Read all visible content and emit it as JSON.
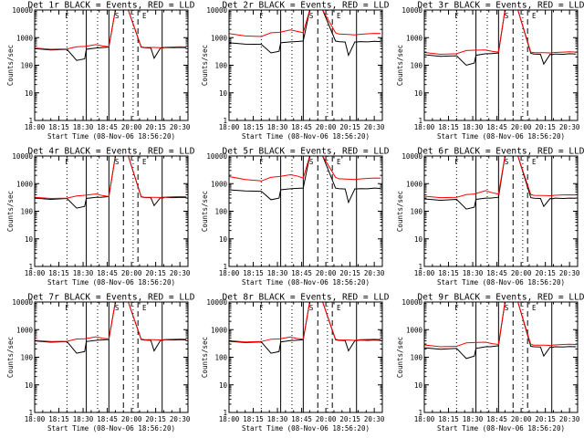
{
  "figure": {
    "xaxis_label": "Start Time (08-Nov-06 18:56:20)",
    "ylabel": "Counts/sec"
  },
  "chart_data": {
    "type": "line",
    "panel_count": 9,
    "shared_x": {
      "unit": "time of day",
      "range": [
        "18:00",
        "20:35"
      ],
      "ticks": [
        "18:00",
        "18:15",
        "18:30",
        "18:45",
        "20:00",
        "20:15",
        "20:30"
      ],
      "tick_minutes": [
        0,
        15,
        30,
        45,
        60,
        75,
        90
      ]
    },
    "shared_y": {
      "scale": "log",
      "range": [
        1,
        10000
      ],
      "ticks": [
        "1",
        "10",
        "100",
        "1000",
        "10000"
      ],
      "tick_values": [
        1,
        10,
        100,
        1000,
        10000
      ]
    },
    "markers": {
      "dotted_minutes": [
        20,
        39,
        61
      ],
      "solid_minutes": [
        32,
        46,
        79
      ],
      "dashed_minutes": [
        55,
        64
      ],
      "letters": [
        "F",
        "S",
        "E"
      ]
    },
    "series_meta": [
      {
        "name": "Events",
        "color": "#000000"
      },
      {
        "name": "LLD",
        "color": "#ff0000"
      }
    ],
    "panels": [
      {
        "title": "Det 1r  BLACK = Events, RED = LLD",
        "events": {
          "x": [
            0,
            10,
            20,
            26,
            31,
            32,
            38,
            41,
            46,
            50,
            58,
            66,
            68,
            72,
            74,
            78,
            79,
            81,
            86,
            90,
            94
          ],
          "y": [
            400,
            360,
            380,
            150,
            170,
            380,
            420,
            430,
            450,
            10000,
            10000,
            450,
            430,
            420,
            180,
            420,
            420,
            440,
            430,
            440,
            430
          ]
        },
        "lld": {
          "x": [
            0,
            10,
            20,
            26,
            31,
            38,
            42,
            46,
            50,
            58,
            66,
            68,
            74,
            78,
            81,
            86,
            90,
            94
          ],
          "y": [
            420,
            380,
            390,
            470,
            480,
            560,
            500,
            470,
            10000,
            10000,
            470,
            440,
            440,
            430,
            450,
            460,
            470,
            460
          ]
        }
      },
      {
        "title": "Det 2r  BLACK = Events, RED = LLD",
        "events": {
          "x": [
            0,
            10,
            20,
            26,
            31,
            32,
            38,
            41,
            46,
            50,
            58,
            66,
            68,
            72,
            74,
            78,
            79,
            81,
            86,
            90,
            94
          ],
          "y": [
            650,
            580,
            570,
            280,
            320,
            650,
            700,
            720,
            750,
            10000,
            10000,
            750,
            720,
            690,
            230,
            700,
            690,
            720,
            700,
            740,
            720
          ]
        },
        "lld": {
          "x": [
            0,
            10,
            20,
            26,
            31,
            38,
            42,
            46,
            50,
            58,
            66,
            68,
            74,
            78,
            81,
            86,
            90,
            94
          ],
          "y": [
            1400,
            1150,
            1100,
            1500,
            1550,
            1900,
            1700,
            1500,
            10000,
            10000,
            1500,
            1350,
            1300,
            1250,
            1320,
            1380,
            1420,
            1400
          ]
        }
      },
      {
        "title": "Det 3r  BLACK = Events, RED = LLD",
        "events": {
          "x": [
            0,
            10,
            20,
            26,
            31,
            32,
            38,
            41,
            46,
            50,
            58,
            66,
            68,
            72,
            74,
            78,
            79,
            81,
            86,
            90,
            94
          ],
          "y": [
            240,
            210,
            220,
            100,
            120,
            230,
            260,
            260,
            280,
            10000,
            10000,
            270,
            255,
            250,
            110,
            250,
            240,
            255,
            250,
            260,
            255
          ]
        },
        "lld": {
          "x": [
            0,
            10,
            20,
            26,
            31,
            38,
            42,
            46,
            50,
            58,
            66,
            68,
            74,
            78,
            81,
            86,
            90,
            94
          ],
          "y": [
            290,
            250,
            260,
            340,
            350,
            360,
            320,
            300,
            10000,
            10000,
            300,
            285,
            285,
            280,
            290,
            300,
            305,
            300
          ]
        }
      },
      {
        "title": "Det 4r  BLACK = Events, RED = LLD",
        "events": {
          "x": [
            0,
            10,
            20,
            26,
            31,
            32,
            38,
            41,
            46,
            50,
            58,
            66,
            68,
            72,
            74,
            78,
            79,
            81,
            86,
            90,
            94
          ],
          "y": [
            300,
            270,
            290,
            130,
            150,
            290,
            320,
            320,
            340,
            10000,
            10000,
            330,
            315,
            310,
            160,
            310,
            300,
            320,
            310,
            320,
            315
          ]
        },
        "lld": {
          "x": [
            0,
            10,
            20,
            26,
            31,
            38,
            42,
            46,
            50,
            58,
            66,
            68,
            74,
            78,
            81,
            86,
            90,
            94
          ],
          "y": [
            320,
            290,
            300,
            360,
            380,
            420,
            370,
            340,
            10000,
            10000,
            340,
            320,
            320,
            315,
            325,
            335,
            340,
            335
          ]
        }
      },
      {
        "title": "Det 5r  BLACK = Events, RED = LLD",
        "events": {
          "x": [
            0,
            10,
            20,
            26,
            31,
            32,
            38,
            41,
            46,
            50,
            58,
            66,
            68,
            72,
            74,
            78,
            79,
            81,
            86,
            90,
            94
          ],
          "y": [
            600,
            540,
            530,
            260,
            300,
            600,
            650,
            670,
            690,
            10000,
            10000,
            690,
            660,
            640,
            210,
            650,
            640,
            660,
            650,
            690,
            670
          ]
        },
        "lld": {
          "x": [
            0,
            10,
            20,
            26,
            31,
            38,
            42,
            46,
            50,
            58,
            66,
            68,
            74,
            78,
            81,
            86,
            90,
            94
          ],
          "y": [
            1800,
            1400,
            1250,
            1700,
            1800,
            2100,
            1900,
            1600,
            10000,
            10000,
            1700,
            1500,
            1450,
            1400,
            1480,
            1550,
            1600,
            1580
          ]
        }
      },
      {
        "title": "Det 6r  BLACK = Events, RED = LLD",
        "events": {
          "x": [
            0,
            10,
            20,
            26,
            31,
            32,
            38,
            41,
            46,
            50,
            58,
            66,
            68,
            72,
            74,
            78,
            79,
            81,
            86,
            90,
            94
          ],
          "y": [
            280,
            250,
            270,
            120,
            140,
            270,
            300,
            300,
            320,
            10000,
            10000,
            310,
            295,
            290,
            150,
            290,
            280,
            300,
            290,
            300,
            295
          ]
        },
        "lld": {
          "x": [
            0,
            10,
            20,
            26,
            31,
            38,
            42,
            46,
            50,
            58,
            66,
            68,
            74,
            78,
            81,
            86,
            90,
            94
          ],
          "y": [
            350,
            310,
            320,
            400,
            420,
            560,
            470,
            420,
            10000,
            10000,
            400,
            375,
            370,
            365,
            380,
            390,
            395,
            390
          ]
        }
      },
      {
        "title": "Det 7r  BLACK = Events, RED = LLD",
        "events": {
          "x": [
            0,
            10,
            20,
            26,
            31,
            32,
            38,
            41,
            46,
            50,
            58,
            66,
            68,
            72,
            74,
            78,
            79,
            81,
            86,
            90,
            94
          ],
          "y": [
            390,
            350,
            370,
            140,
            160,
            370,
            410,
            420,
            440,
            10000,
            10000,
            440,
            420,
            410,
            170,
            410,
            410,
            430,
            420,
            430,
            420
          ]
        },
        "lld": {
          "x": [
            0,
            10,
            20,
            26,
            31,
            38,
            42,
            46,
            50,
            58,
            66,
            68,
            74,
            78,
            81,
            86,
            90,
            94
          ],
          "y": [
            410,
            370,
            380,
            460,
            470,
            550,
            490,
            460,
            10000,
            10000,
            460,
            430,
            430,
            420,
            440,
            450,
            460,
            450
          ]
        }
      },
      {
        "title": "Det 8r  BLACK = Events, RED = LLD",
        "events": {
          "x": [
            0,
            10,
            20,
            26,
            31,
            32,
            38,
            41,
            46,
            50,
            58,
            66,
            68,
            72,
            74,
            78,
            79,
            81,
            86,
            90,
            94
          ],
          "y": [
            380,
            340,
            360,
            140,
            160,
            360,
            400,
            410,
            430,
            10000,
            10000,
            430,
            410,
            400,
            170,
            400,
            400,
            420,
            410,
            420,
            410
          ]
        },
        "lld": {
          "x": [
            0,
            10,
            20,
            26,
            31,
            38,
            42,
            46,
            50,
            58,
            66,
            68,
            74,
            78,
            81,
            86,
            90,
            94
          ],
          "y": [
            400,
            360,
            370,
            450,
            460,
            540,
            480,
            450,
            10000,
            10000,
            450,
            420,
            420,
            410,
            430,
            440,
            450,
            440
          ]
        }
      },
      {
        "title": "Det 9r  BLACK = Events, RED = LLD",
        "events": {
          "x": [
            0,
            10,
            20,
            26,
            31,
            32,
            38,
            41,
            46,
            50,
            58,
            66,
            68,
            72,
            74,
            78,
            79,
            81,
            86,
            90,
            94
          ],
          "y": [
            220,
            195,
            210,
            90,
            110,
            210,
            240,
            240,
            260,
            10000,
            10000,
            250,
            240,
            235,
            110,
            235,
            225,
            240,
            235,
            245,
            240
          ]
        },
        "lld": {
          "x": [
            0,
            10,
            20,
            26,
            31,
            38,
            42,
            46,
            50,
            58,
            66,
            68,
            74,
            78,
            81,
            86,
            90,
            94
          ],
          "y": [
            280,
            240,
            250,
            330,
            340,
            350,
            310,
            290,
            10000,
            10000,
            290,
            275,
            275,
            270,
            280,
            290,
            295,
            290
          ]
        }
      }
    ]
  }
}
